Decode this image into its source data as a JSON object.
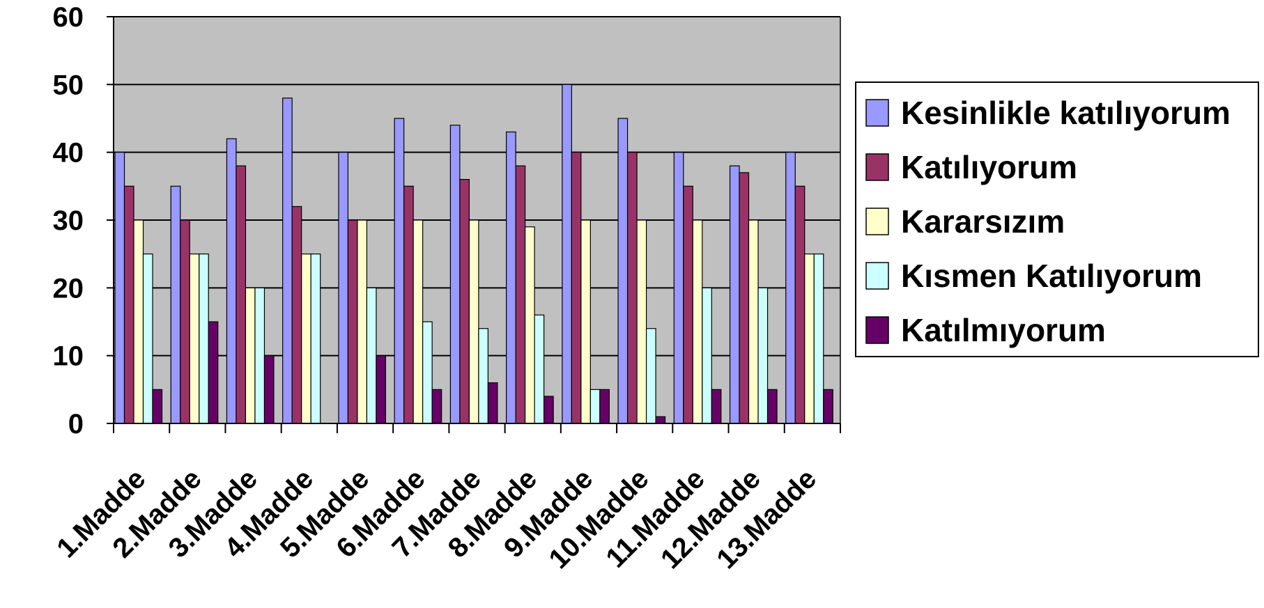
{
  "chart_data": {
    "type": "bar",
    "title": "",
    "xlabel": "",
    "ylabel": "",
    "ylim": [
      0,
      60
    ],
    "yticks": [
      0,
      10,
      20,
      30,
      40,
      50,
      60
    ],
    "grid": true,
    "plot_background": "#C0C0C0",
    "legend_position": "right",
    "categories": [
      "1.Madde",
      "2.Madde",
      "3.Madde",
      "4.Madde",
      "5.Madde",
      "6.Madde",
      "7.Madde",
      "8.Madde",
      "9.Madde",
      "10.Madde",
      "11.Madde",
      "12.Madde",
      "13.Madde"
    ],
    "series": [
      {
        "name": "Kesinlikle katılıyorum",
        "color": "#9999FF",
        "values": [
          40,
          35,
          42,
          48,
          40,
          45,
          44,
          43,
          50,
          45,
          40,
          38,
          40
        ]
      },
      {
        "name": "Katılıyorum",
        "color": "#993366",
        "values": [
          35,
          30,
          38,
          32,
          30,
          35,
          36,
          38,
          40,
          40,
          35,
          37,
          35
        ]
      },
      {
        "name": "Kararsızım",
        "color": "#FFFFCC",
        "values": [
          30,
          25,
          20,
          25,
          30,
          30,
          30,
          29,
          30,
          30,
          30,
          30,
          25
        ]
      },
      {
        "name": "Kısmen Katılıyorum",
        "color": "#CCFFFF",
        "values": [
          25,
          25,
          20,
          25,
          20,
          15,
          14,
          16,
          5,
          14,
          20,
          20,
          25
        ]
      },
      {
        "name": "Katılmıyorum",
        "color": "#660066",
        "values": [
          5,
          15,
          10,
          0,
          10,
          5,
          6,
          4,
          5,
          1,
          5,
          5,
          5
        ]
      }
    ]
  }
}
